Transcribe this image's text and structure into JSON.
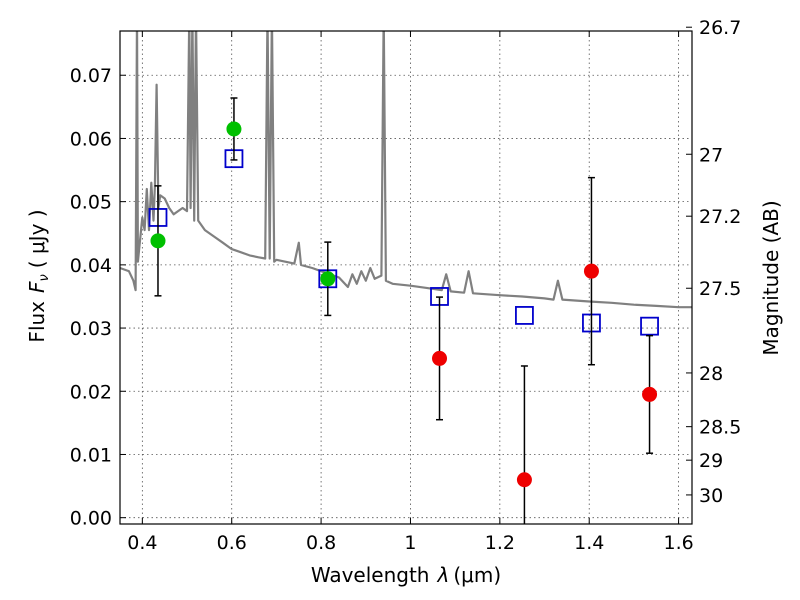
{
  "chart_data": {
    "type": "scatter",
    "xlabel": "Wavelength",
    "xlabel_symbol": "λ",
    "xlabel_unit": "(μm)",
    "ylabel_text": "Flux",
    "ylabel_symbol": "F",
    "ylabel_subscript": "ν",
    "ylabel_unit": "( μJy )",
    "ylabel_right": "Magnitude (AB)",
    "xlim": [
      0.35,
      1.63
    ],
    "ylim": [
      -0.001,
      0.077
    ],
    "grid": true,
    "x_ticks": [
      {
        "value": 0.4,
        "label": "0.4"
      },
      {
        "value": 0.6,
        "label": "0.6"
      },
      {
        "value": 0.8,
        "label": "0.8"
      },
      {
        "value": 1.0,
        "label": "1"
      },
      {
        "value": 1.2,
        "label": "1.2"
      },
      {
        "value": 1.4,
        "label": "1.4"
      },
      {
        "value": 1.6,
        "label": "1.6"
      }
    ],
    "y_ticks": [
      {
        "value": 0.0,
        "label": "0.00"
      },
      {
        "value": 0.01,
        "label": "0.01"
      },
      {
        "value": 0.02,
        "label": "0.02"
      },
      {
        "value": 0.03,
        "label": "0.03"
      },
      {
        "value": 0.04,
        "label": "0.04"
      },
      {
        "value": 0.05,
        "label": "0.05"
      },
      {
        "value": 0.06,
        "label": "0.06"
      },
      {
        "value": 0.07,
        "label": "0.07"
      }
    ],
    "right_ticks": [
      {
        "flux": 0.0776,
        "label": "26.7"
      },
      {
        "flux": 0.0575,
        "label": "27"
      },
      {
        "flux": 0.0477,
        "label": "27.2"
      },
      {
        "flux": 0.0363,
        "label": "27.5"
      },
      {
        "flux": 0.0229,
        "label": "28"
      },
      {
        "flux": 0.0144,
        "label": "28.5"
      },
      {
        "flux": 0.0091,
        "label": "29"
      },
      {
        "flux": 0.0036,
        "label": "30"
      }
    ],
    "series": [
      {
        "name": "model_spectrum",
        "kind": "line",
        "color": "#808080",
        "points": [
          [
            0.35,
            0.0395
          ],
          [
            0.37,
            0.039
          ],
          [
            0.38,
            0.0375
          ],
          [
            0.385,
            0.036
          ],
          [
            0.388,
            0.08
          ],
          [
            0.39,
            0.0405
          ],
          [
            0.395,
            0.044
          ],
          [
            0.4,
            0.0475
          ],
          [
            0.405,
            0.0455
          ],
          [
            0.41,
            0.052
          ],
          [
            0.415,
            0.0455
          ],
          [
            0.42,
            0.053
          ],
          [
            0.425,
            0.047
          ],
          [
            0.428,
            0.0525
          ],
          [
            0.432,
            0.0685
          ],
          [
            0.436,
            0.049
          ],
          [
            0.44,
            0.051
          ],
          [
            0.45,
            0.0505
          ],
          [
            0.46,
            0.049
          ],
          [
            0.47,
            0.048
          ],
          [
            0.48,
            0.0485
          ],
          [
            0.49,
            0.049
          ],
          [
            0.5,
            0.0485
          ],
          [
            0.505,
            0.08
          ],
          [
            0.508,
            0.049
          ],
          [
            0.512,
            0.08
          ],
          [
            0.516,
            0.047
          ],
          [
            0.52,
            0.08
          ],
          [
            0.525,
            0.047
          ],
          [
            0.54,
            0.0455
          ],
          [
            0.56,
            0.0445
          ],
          [
            0.58,
            0.0435
          ],
          [
            0.6,
            0.0425
          ],
          [
            0.62,
            0.042
          ],
          [
            0.64,
            0.0415
          ],
          [
            0.66,
            0.0412
          ],
          [
            0.675,
            0.041
          ],
          [
            0.68,
            0.08
          ],
          [
            0.685,
            0.041
          ],
          [
            0.69,
            0.08
          ],
          [
            0.695,
            0.0405
          ],
          [
            0.7,
            0.0408
          ],
          [
            0.72,
            0.0405
          ],
          [
            0.74,
            0.0402
          ],
          [
            0.75,
            0.0435
          ],
          [
            0.755,
            0.04
          ],
          [
            0.78,
            0.0395
          ],
          [
            0.8,
            0.039
          ],
          [
            0.82,
            0.0385
          ],
          [
            0.84,
            0.038
          ],
          [
            0.86,
            0.0365
          ],
          [
            0.87,
            0.0385
          ],
          [
            0.88,
            0.037
          ],
          [
            0.89,
            0.039
          ],
          [
            0.9,
            0.0375
          ],
          [
            0.91,
            0.0395
          ],
          [
            0.92,
            0.0378
          ],
          [
            0.935,
            0.0383
          ],
          [
            0.94,
            0.08
          ],
          [
            0.945,
            0.0375
          ],
          [
            0.96,
            0.037
          ],
          [
            1.0,
            0.0367
          ],
          [
            1.04,
            0.0363
          ],
          [
            1.07,
            0.036
          ],
          [
            1.08,
            0.0385
          ],
          [
            1.09,
            0.0358
          ],
          [
            1.12,
            0.0356
          ],
          [
            1.13,
            0.039
          ],
          [
            1.14,
            0.0355
          ],
          [
            1.2,
            0.0352
          ],
          [
            1.25,
            0.035
          ],
          [
            1.3,
            0.0347
          ],
          [
            1.32,
            0.0345
          ],
          [
            1.33,
            0.0375
          ],
          [
            1.34,
            0.0345
          ],
          [
            1.4,
            0.0342
          ],
          [
            1.45,
            0.034
          ],
          [
            1.5,
            0.0337
          ],
          [
            1.55,
            0.0335
          ],
          [
            1.6,
            0.0333
          ],
          [
            1.63,
            0.0333
          ]
        ]
      },
      {
        "name": "model_photometry",
        "kind": "open_square",
        "color": "#0000cc",
        "x": [
          0.435,
          0.605,
          0.815,
          1.065,
          1.255,
          1.405,
          1.535
        ],
        "y": [
          0.0475,
          0.0568,
          0.0378,
          0.035,
          0.032,
          0.0308,
          0.0303
        ]
      },
      {
        "name": "detections",
        "kind": "filled_circle",
        "color": "#00c000",
        "x": [
          0.435,
          0.605,
          0.815
        ],
        "y": [
          0.0438,
          0.0615,
          0.0378
        ],
        "err": [
          0.0087,
          0.0049,
          0.0058
        ]
      },
      {
        "name": "non_detections",
        "kind": "filled_circle",
        "color": "#ee0000",
        "x": [
          1.065,
          1.255,
          1.405,
          1.535
        ],
        "y": [
          0.0252,
          0.006,
          0.039,
          0.0195
        ],
        "err": [
          0.0097,
          0.018,
          0.0148,
          0.0093
        ]
      }
    ]
  }
}
